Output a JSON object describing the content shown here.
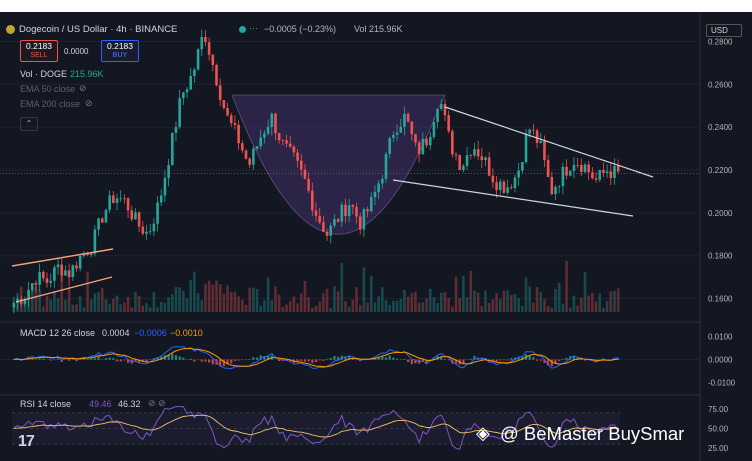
{
  "header": {
    "symbol_title": "Dogecoin / US Dollar · 4h · BINANCE",
    "change": "−0.0005 (−0.23%)",
    "vol_label": "Vol",
    "vol_value": "215.96K",
    "currency": "USD"
  },
  "trade": {
    "sell_price": "0.2183",
    "sell_label": "SELL",
    "spread": "0.0000",
    "buy_price": "0.2183",
    "buy_label": "BUY"
  },
  "indicators": {
    "vol_label": "Vol · DOGE",
    "vol_value": "215.96K",
    "ema50": "EMA 50 close",
    "ema200": "EMA 200 close",
    "macd_label": "MACD 12 26 close",
    "macd_v1": "0.0004",
    "macd_v2": "−0.0006",
    "macd_v3": "−0.0010",
    "rsi_label": "RSI 14 close",
    "rsi_v1": "49.46",
    "rsi_v2": "46.32"
  },
  "watermark": {
    "text": "@ BeMaster BuySmar",
    "logo": "tradingview-logo",
    "icon": "binance-diamond-icon"
  },
  "colors": {
    "background": "#131722",
    "up": "#26a69a",
    "down": "#ef5350",
    "pattern_fill": "#5b3d8a",
    "wedge_lines": "#d1d4dc",
    "left_channel": "#f7a07a",
    "macd_line": "#2962ff",
    "signal_line": "#ff9800",
    "rsi_line": "#7e57c2"
  },
  "chart_data": [
    {
      "type": "candlestick",
      "title": "Dogecoin / US Dollar · 4h · BINANCE",
      "ylim": [
        0.15,
        0.29
      ],
      "y_ticks": [
        "0.2800",
        "0.2600",
        "0.2400",
        "0.2200",
        "0.2000",
        "0.1800",
        "0.1600"
      ],
      "anchors_close": [
        0.158,
        0.162,
        0.17,
        0.168,
        0.175,
        0.172,
        0.18,
        0.185,
        0.2,
        0.208,
        0.205,
        0.195,
        0.19,
        0.205,
        0.23,
        0.255,
        0.265,
        0.285,
        0.265,
        0.245,
        0.235,
        0.222,
        0.235,
        0.245,
        0.232,
        0.225,
        0.215,
        0.2,
        0.19,
        0.198,
        0.205,
        0.195,
        0.205,
        0.22,
        0.24,
        0.245,
        0.228,
        0.235,
        0.255,
        0.232,
        0.222,
        0.232,
        0.225,
        0.215,
        0.212,
        0.218,
        0.24,
        0.232,
        0.21,
        0.218,
        0.225,
        0.222,
        0.215,
        0.22,
        0.218
      ],
      "candle_count": 165,
      "annotations": [
        "rising channel",
        "rounding bottom",
        "falling wedge"
      ]
    },
    {
      "type": "bar",
      "name": "Vol · DOGE",
      "last_value": "215.96K"
    },
    {
      "type": "line",
      "name": "MACD 12 26 close",
      "values_shown": [
        "0.0004",
        "−0.0006",
        "−0.0010"
      ],
      "y_ticks": [
        "0.0100",
        "0.0000",
        "-0.0100"
      ],
      "ylim": [
        -0.012,
        0.012
      ]
    },
    {
      "type": "line",
      "name": "RSI 14 close",
      "values_shown": [
        "49.46",
        "46.32"
      ],
      "y_ticks": [
        "75.00",
        "50.00",
        "25.00"
      ],
      "ylim": [
        20,
        80
      ]
    }
  ]
}
